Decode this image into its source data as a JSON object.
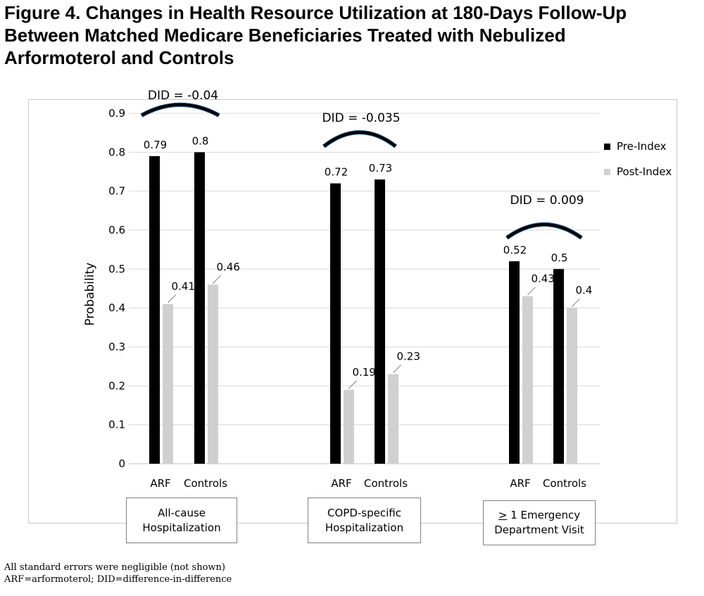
{
  "title": {
    "lines": [
      "Figure 4. Changes in Health Resource Utilization at 180-Days Follow-Up",
      "Between Matched Medicare Beneficiaries Treated with Nebulized",
      "Arformoterol and Controls"
    ]
  },
  "chart_data": {
    "type": "bar",
    "ylabel": "Probability",
    "ylim": [
      0,
      0.9
    ],
    "yticks": [
      "0",
      "0.1",
      "0.2",
      "0.3",
      "0.4",
      "0.5",
      "0.6",
      "0.7",
      "0.8",
      "0.9"
    ],
    "grid": true,
    "legend_position": "right",
    "series": [
      {
        "name": "Pre-Index",
        "color": "#000000"
      },
      {
        "name": "Post-Index",
        "color": "#d0d0d0"
      }
    ],
    "groups": [
      {
        "label_line1": "All-cause",
        "label_line2": "Hospitalization",
        "did": "DID = -0.04",
        "categories": [
          {
            "name": "ARF",
            "pre": 0.79,
            "post": 0.41,
            "pre_label": "0.79",
            "post_label": "0.41"
          },
          {
            "name": "Controls",
            "pre": 0.8,
            "post": 0.46,
            "pre_label": "0.8",
            "post_label": "0.46"
          }
        ]
      },
      {
        "label_line1": "COPD-specific",
        "label_line2": "Hospitalization",
        "did": "DID = -0.035",
        "categories": [
          {
            "name": "ARF",
            "pre": 0.72,
            "post": 0.19,
            "pre_label": "0.72",
            "post_label": "0.19"
          },
          {
            "name": "Controls",
            "pre": 0.73,
            "post": 0.23,
            "pre_label": "0.73",
            "post_label": "0.23"
          }
        ]
      },
      {
        "label_prefix": ">",
        "label_line1_rest": " 1 Emergency",
        "label_line2": "Department Visit",
        "did": "DID = 0.009",
        "categories": [
          {
            "name": "ARF",
            "pre": 0.52,
            "post": 0.43,
            "pre_label": "0.52",
            "post_label": "0.43"
          },
          {
            "name": "Controls",
            "pre": 0.5,
            "post": 0.4,
            "pre_label": "0.5",
            "post_label": "0.4"
          }
        ]
      }
    ]
  },
  "notes": [
    "All standard errors were negligible (not shown)",
    "ARF=arformoterol; DID=difference-in-difference"
  ]
}
